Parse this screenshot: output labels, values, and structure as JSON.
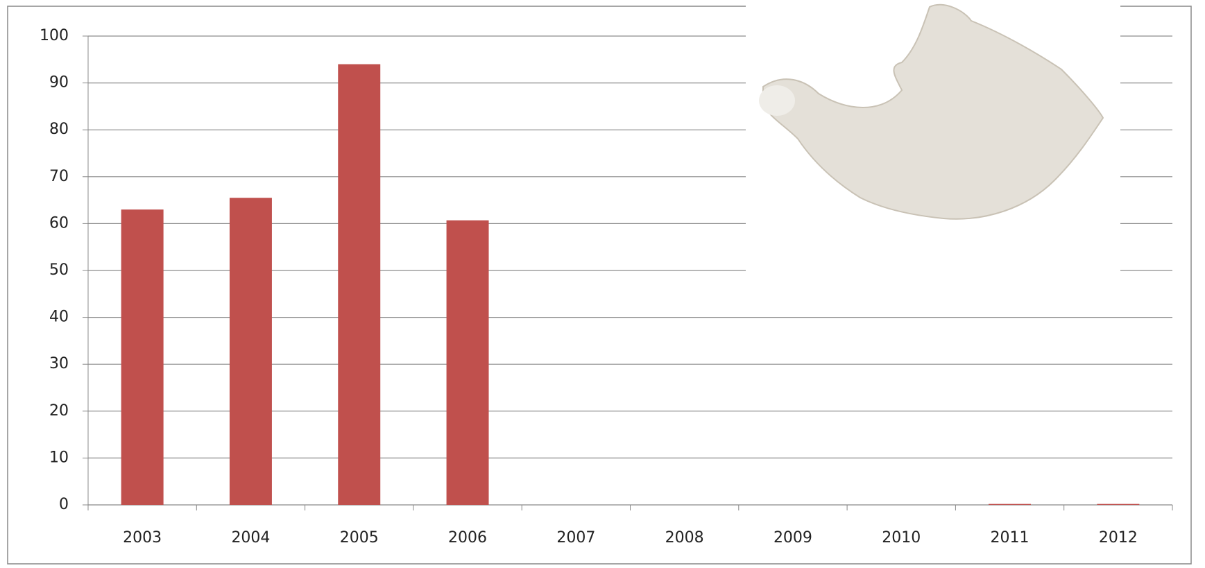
{
  "chart_data": {
    "type": "bar",
    "categories": [
      "2003",
      "2004",
      "2005",
      "2006",
      "2007",
      "2008",
      "2009",
      "2010",
      "2011",
      "2012"
    ],
    "values": [
      63,
      65.5,
      94,
      60.7,
      null,
      null,
      null,
      null,
      0.2,
      0.2
    ],
    "color": "#c0504d",
    "ylim": [
      0,
      100
    ],
    "yticks": [
      0,
      10,
      20,
      30,
      40,
      50,
      60,
      70,
      80,
      90,
      100
    ],
    "grid": true
  }
}
